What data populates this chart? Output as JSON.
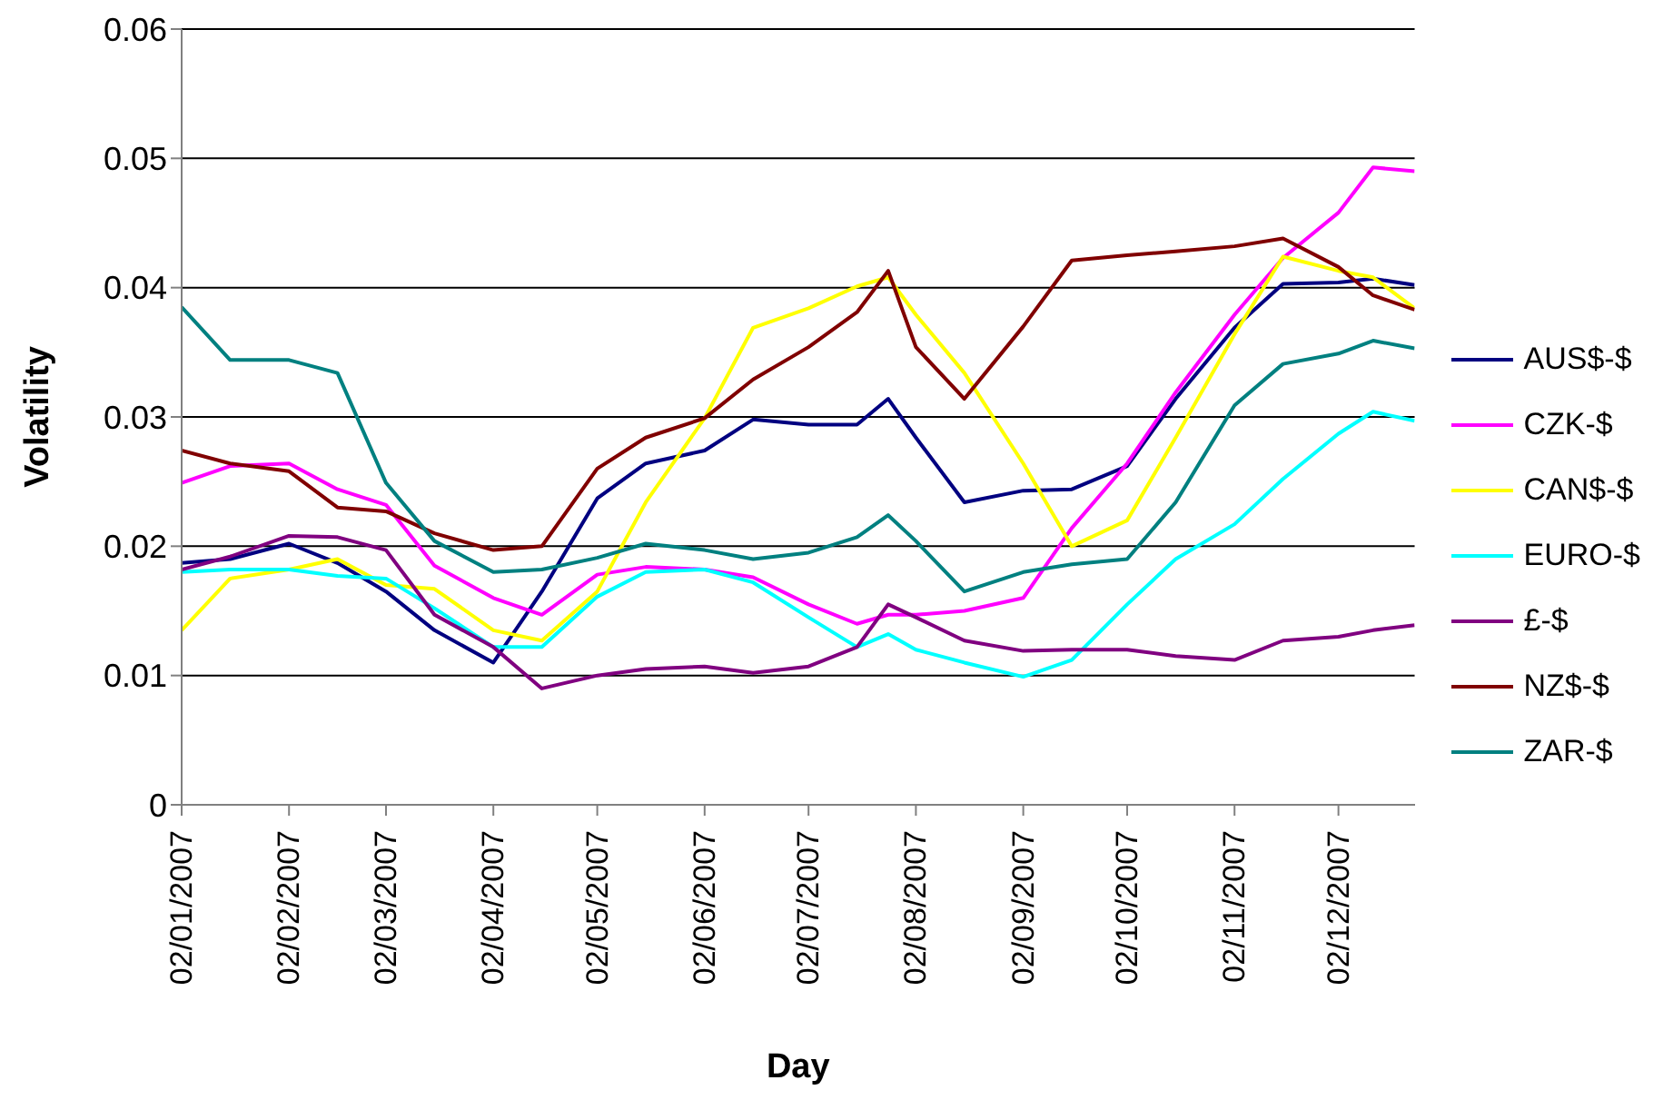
{
  "chart_data": {
    "type": "line",
    "xlabel": "Day",
    "ylabel": "Volatility",
    "x": [
      "2007-01-02",
      "2007-01-16",
      "2007-02-02",
      "2007-02-16",
      "2007-03-02",
      "2007-03-16",
      "2007-04-02",
      "2007-04-16",
      "2007-05-02",
      "2007-05-16",
      "2007-06-02",
      "2007-06-16",
      "2007-07-02",
      "2007-07-16",
      "2007-07-25",
      "2007-08-02",
      "2007-08-16",
      "2007-09-02",
      "2007-09-16",
      "2007-10-02",
      "2007-10-16",
      "2007-11-02",
      "2007-11-16",
      "2007-12-02",
      "2007-12-12",
      "2007-12-24"
    ],
    "series": [
      {
        "name": "AUS$-$",
        "color": "#000080",
        "values": [
          0.0187,
          0.019,
          0.0202,
          0.0187,
          0.0165,
          0.0135,
          0.011,
          0.0165,
          0.0237,
          0.0264,
          0.0274,
          0.0298,
          0.0294,
          0.0294,
          0.0314,
          0.0284,
          0.0234,
          0.0243,
          0.0244,
          0.0262,
          0.0314,
          0.0369,
          0.0403,
          0.0404,
          0.0407,
          0.0402
        ]
      },
      {
        "name": "CZK-$",
        "color": "#ff00ff",
        "values": [
          0.0249,
          0.0262,
          0.0264,
          0.0244,
          0.0232,
          0.0185,
          0.016,
          0.0147,
          0.0178,
          0.0184,
          0.0182,
          0.0176,
          0.0155,
          0.014,
          0.0147,
          0.0147,
          0.015,
          0.016,
          0.0214,
          0.0264,
          0.0319,
          0.0379,
          0.0423,
          0.0458,
          0.0493,
          0.049
        ]
      },
      {
        "name": "CAN$-$",
        "color": "#ffff00",
        "values": [
          0.0135,
          0.0175,
          0.0182,
          0.019,
          0.017,
          0.0167,
          0.0135,
          0.0127,
          0.0165,
          0.0234,
          0.0299,
          0.0369,
          0.0384,
          0.0401,
          0.0408,
          0.0379,
          0.0334,
          0.0264,
          0.02,
          0.022,
          0.0284,
          0.0364,
          0.0424,
          0.0413,
          0.0408,
          0.0384
        ]
      },
      {
        "name": "EURO-$",
        "color": "#00ffff",
        "values": [
          0.018,
          0.0182,
          0.0182,
          0.0177,
          0.0175,
          0.0152,
          0.0122,
          0.0122,
          0.0161,
          0.018,
          0.0182,
          0.0172,
          0.0145,
          0.0122,
          0.0132,
          0.012,
          0.011,
          0.0099,
          0.0112,
          0.0155,
          0.019,
          0.0217,
          0.0252,
          0.0287,
          0.0304,
          0.0297
        ]
      },
      {
        "name": "£-$",
        "color": "#800080",
        "values": [
          0.0182,
          0.0192,
          0.0208,
          0.0207,
          0.0197,
          0.0147,
          0.0122,
          0.009,
          0.01,
          0.0105,
          0.0107,
          0.0102,
          0.0107,
          0.0122,
          0.0155,
          0.0145,
          0.0127,
          0.0119,
          0.012,
          0.012,
          0.0115,
          0.0112,
          0.0127,
          0.013,
          0.0135,
          0.0139
        ]
      },
      {
        "name": "NZ$-$",
        "color": "#800000",
        "values": [
          0.0274,
          0.0264,
          0.0258,
          0.023,
          0.0227,
          0.021,
          0.0197,
          0.02,
          0.026,
          0.0284,
          0.0299,
          0.0329,
          0.0354,
          0.0381,
          0.0413,
          0.0354,
          0.0314,
          0.037,
          0.0421,
          0.0425,
          0.0428,
          0.0432,
          0.0438,
          0.0416,
          0.0394,
          0.0383
        ]
      },
      {
        "name": "ZAR-$",
        "color": "#008080",
        "values": [
          0.0385,
          0.0344,
          0.0344,
          0.0334,
          0.0249,
          0.0204,
          0.018,
          0.0182,
          0.0191,
          0.0202,
          0.0197,
          0.019,
          0.0195,
          0.0207,
          0.0224,
          0.0204,
          0.0165,
          0.018,
          0.0186,
          0.019,
          0.0234,
          0.0309,
          0.0341,
          0.0349,
          0.0359,
          0.0353
        ]
      }
    ],
    "xlim": [
      "2007-01-02",
      "2007-12-24"
    ],
    "xticks": [
      {
        "value": "2007-01-02",
        "label": "02/01/2007"
      },
      {
        "value": "2007-02-02",
        "label": "02/02/2007"
      },
      {
        "value": "2007-03-02",
        "label": "02/03/2007"
      },
      {
        "value": "2007-04-02",
        "label": "02/04/2007"
      },
      {
        "value": "2007-05-02",
        "label": "02/05/2007"
      },
      {
        "value": "2007-06-02",
        "label": "02/06/2007"
      },
      {
        "value": "2007-07-02",
        "label": "02/07/2007"
      },
      {
        "value": "2007-08-02",
        "label": "02/08/2007"
      },
      {
        "value": "2007-09-02",
        "label": "02/09/2007"
      },
      {
        "value": "2007-10-02",
        "label": "02/10/2007"
      },
      {
        "value": "2007-11-02",
        "label": "02/11/2007"
      },
      {
        "value": "2007-12-02",
        "label": "02/12/2007"
      }
    ],
    "ylim": [
      0,
      0.06
    ],
    "yticks": [
      0,
      0.01,
      0.02,
      0.03,
      0.04,
      0.05,
      0.06
    ],
    "grid": "y",
    "legend": "right",
    "marker": "none",
    "line_style": "solid"
  }
}
